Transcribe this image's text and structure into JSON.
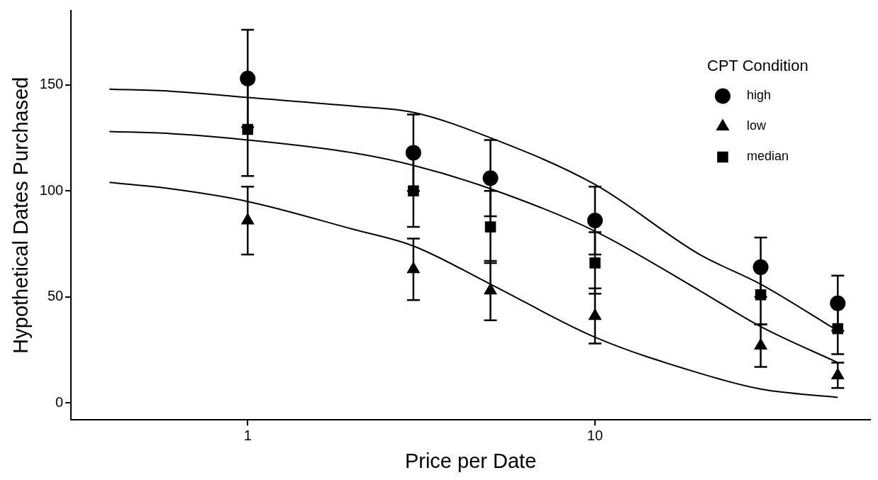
{
  "chart_data": {
    "type": "scatter",
    "xlabel": "Price per Date",
    "ylabel": "Hypothetical Dates Purchased",
    "legend_title": "CPT Condition",
    "legend": "top right",
    "grid": false,
    "log": "x",
    "xlim": [
      0.31,
      62
    ],
    "xticks": [
      1,
      10
    ],
    "ylim": [
      -8,
      185
    ],
    "yticks": [
      0,
      50,
      100,
      150
    ],
    "x": [
      1,
      3,
      5,
      10,
      30,
      50
    ],
    "series": [
      {
        "name": "high",
        "color": "#000000",
        "marker": "circle",
        "values": [
          153,
          118,
          106,
          86,
          64,
          47
        ],
        "errors": [
          23,
          18,
          18,
          16,
          14,
          13
        ]
      },
      {
        "name": "low",
        "color": "#000000",
        "marker": "triangle",
        "values": [
          86,
          63,
          53,
          41,
          27,
          13
        ],
        "errors": [
          16,
          14.5,
          14,
          13,
          10,
          6
        ]
      },
      {
        "name": "median",
        "color": "#000000",
        "marker": "square",
        "values": [
          129,
          100,
          83,
          66,
          51,
          35
        ],
        "errors": [
          22,
          17,
          17,
          14.5,
          14,
          12
        ]
      },
      {
        "type": "line",
        "color": "#000000",
        "marker": "none",
        "x": [
          0.4,
          0.6,
          1,
          2,
          3,
          5,
          10,
          20,
          30,
          50
        ],
        "values": [
          148,
          147,
          144,
          140,
          137,
          125,
          103,
          70,
          56,
          34
        ]
      },
      {
        "type": "line",
        "color": "#000000",
        "marker": "none",
        "x": [
          0.4,
          0.6,
          1,
          2,
          3,
          5,
          10,
          20,
          30,
          50
        ],
        "values": [
          128,
          127,
          124,
          118,
          112,
          101,
          81,
          53,
          36,
          19
        ]
      },
      {
        "type": "line",
        "color": "#000000",
        "marker": "none",
        "x": [
          0.4,
          0.6,
          1,
          2,
          3,
          5,
          10,
          20,
          30,
          50
        ],
        "values": [
          104,
          101,
          95,
          82,
          74,
          56,
          31,
          14,
          6.5,
          2.6
        ]
      }
    ]
  }
}
